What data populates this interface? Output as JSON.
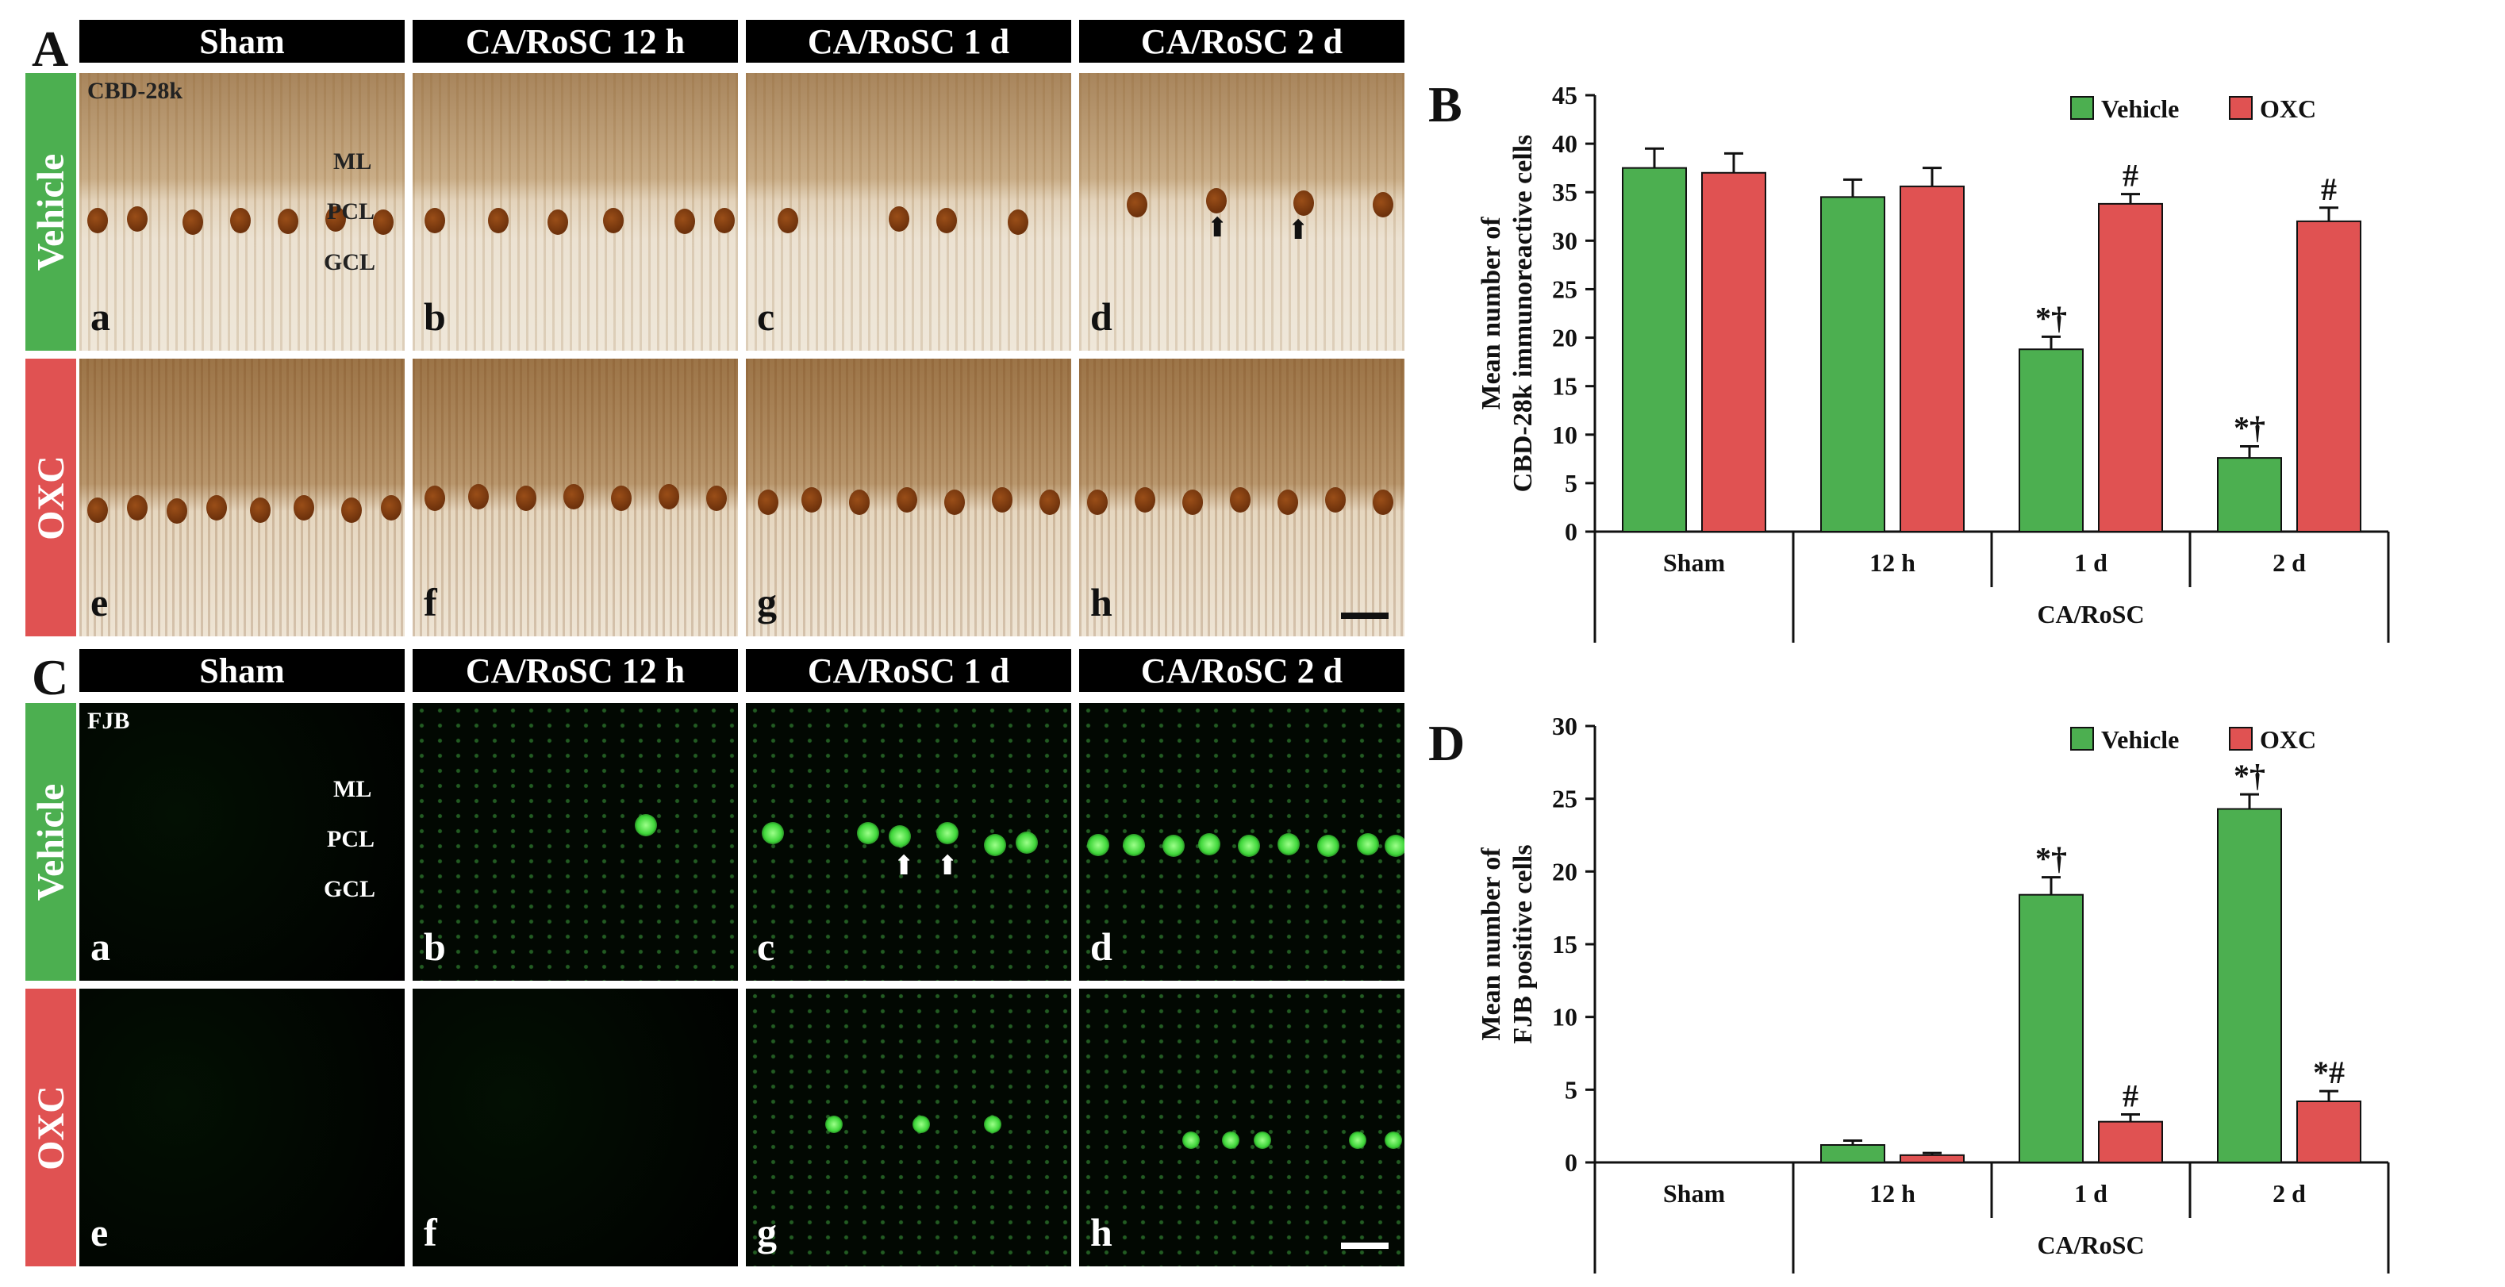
{
  "panel_letters": {
    "a": "A",
    "b": "B",
    "c": "C",
    "d": "D"
  },
  "columns": [
    "Sham",
    "CA/RoSC 12 h",
    "CA/RoSC 1 d",
    "CA/RoSC 2 d"
  ],
  "rows": [
    "Vehicle",
    "OXC"
  ],
  "stain_labels": {
    "a": "CBD-28k",
    "c": "FJB"
  },
  "layer_labels": [
    "ML",
    "PCL",
    "GCL"
  ],
  "subpanel_labels": [
    "a",
    "b",
    "c",
    "d",
    "e",
    "f",
    "g",
    "h"
  ],
  "colors": {
    "vehicle": "#4caf50",
    "oxc": "#e05252",
    "header_bg": "#000000"
  },
  "chart_data": [
    {
      "panel": "B",
      "type": "bar",
      "categories": [
        "Sham",
        "12 h",
        "1 d",
        "2 d"
      ],
      "group_label": "CA/RoSC",
      "ylabel": "Mean number of CBD-28k immunoreactive cells",
      "ylim": [
        0,
        45
      ],
      "yticks": [
        0,
        5,
        10,
        15,
        20,
        25,
        30,
        35,
        40,
        45
      ],
      "legend": "top-right",
      "series": [
        {
          "name": "Vehicle",
          "color": "#4caf50",
          "values": [
            37.5,
            34.5,
            18.8,
            7.6
          ],
          "errors": [
            2.0,
            1.8,
            1.3,
            1.2
          ],
          "annotations": [
            "",
            "",
            "*†",
            "*†"
          ]
        },
        {
          "name": "OXC",
          "color": "#e05252",
          "values": [
            37.0,
            35.6,
            33.8,
            32.0
          ],
          "errors": [
            2.0,
            1.9,
            1.0,
            1.4
          ],
          "annotations": [
            "",
            "",
            "#",
            "#"
          ]
        }
      ]
    },
    {
      "panel": "D",
      "type": "bar",
      "categories": [
        "Sham",
        "12 h",
        "1 d",
        "2 d"
      ],
      "group_label": "CA/RoSC",
      "ylabel": "Mean number of FJB positive cells",
      "ylim": [
        0,
        30
      ],
      "yticks": [
        0,
        5,
        10,
        15,
        20,
        25,
        30
      ],
      "legend": "top-right",
      "series": [
        {
          "name": "Vehicle",
          "color": "#4caf50",
          "values": [
            0,
            1.2,
            18.4,
            24.3
          ],
          "errors": [
            0,
            0.3,
            1.2,
            1.0
          ],
          "annotations": [
            "",
            "",
            "*†",
            "*†"
          ]
        },
        {
          "name": "OXC",
          "color": "#e05252",
          "values": [
            0,
            0.5,
            2.8,
            4.2
          ],
          "errors": [
            0,
            0.15,
            0.5,
            0.7
          ],
          "annotations": [
            "",
            "",
            "#",
            "*#"
          ]
        }
      ]
    }
  ]
}
